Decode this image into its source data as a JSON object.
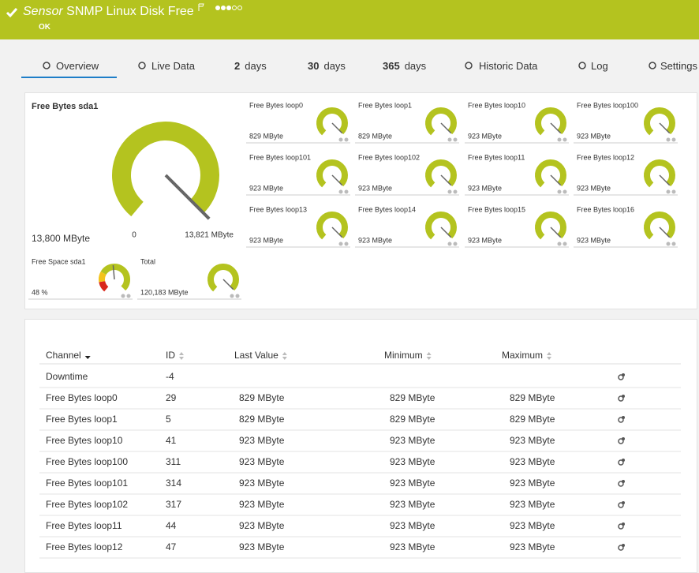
{
  "header": {
    "prefix": "Sensor",
    "title": "SNMP Linux Disk Free",
    "status": "OK"
  },
  "tabs": [
    {
      "label": "Overview"
    },
    {
      "label": "Live Data"
    },
    {
      "number": "2",
      "label": "days"
    },
    {
      "number": "30",
      "label": "days"
    },
    {
      "number": "365",
      "label": "days"
    },
    {
      "label": "Historic Data"
    },
    {
      "label": "Log"
    },
    {
      "label": "Settings"
    }
  ],
  "main_gauge": {
    "title": "Free Bytes sda1",
    "value": "13,800 MByte",
    "min": "0",
    "max": "13,821 MByte"
  },
  "gauges": [
    {
      "title": "Free Bytes loop0",
      "value": "829 MByte"
    },
    {
      "title": "Free Bytes loop1",
      "value": "829 MByte"
    },
    {
      "title": "Free Bytes loop10",
      "value": "923 MByte"
    },
    {
      "title": "Free Bytes loop100",
      "value": "923 MByte"
    },
    {
      "title": "Free Bytes loop101",
      "value": "923 MByte"
    },
    {
      "title": "Free Bytes loop102",
      "value": "923 MByte"
    },
    {
      "title": "Free Bytes loop11",
      "value": "923 MByte"
    },
    {
      "title": "Free Bytes loop12",
      "value": "923 MByte"
    },
    {
      "title": "Free Bytes loop13",
      "value": "923 MByte"
    },
    {
      "title": "Free Bytes loop14",
      "value": "923 MByte"
    },
    {
      "title": "Free Bytes loop15",
      "value": "923 MByte"
    },
    {
      "title": "Free Bytes loop16",
      "value": "923 MByte"
    }
  ],
  "extra_gauges": [
    {
      "title": "Free Space sda1",
      "value": "48 %"
    },
    {
      "title": "Total",
      "value": "120,183 MByte"
    }
  ],
  "table": {
    "columns": [
      "Channel",
      "ID",
      "Last Value",
      "Minimum",
      "Maximum"
    ],
    "rows": [
      [
        "Downtime",
        "-4"
      ],
      [
        "Free Bytes loop0",
        "29",
        "829 MByte",
        "829 MByte",
        "829 MByte"
      ],
      [
        "Free Bytes loop1",
        "5",
        "829 MByte",
        "829 MByte",
        "829 MByte"
      ],
      [
        "Free Bytes loop10",
        "41",
        "923 MByte",
        "923 MByte",
        "923 MByte"
      ],
      [
        "Free Bytes loop100",
        "311",
        "923 MByte",
        "923 MByte",
        "923 MByte"
      ],
      [
        "Free Bytes loop101",
        "314",
        "923 MByte",
        "923 MByte",
        "923 MByte"
      ],
      [
        "Free Bytes loop102",
        "317",
        "923 MByte",
        "923 MByte",
        "923 MByte"
      ],
      [
        "Free Bytes loop11",
        "44",
        "923 MByte",
        "923 MByte",
        "923 MByte"
      ],
      [
        "Free Bytes loop12",
        "47",
        "923 MByte",
        "923 MByte",
        "923 MByte"
      ]
    ]
  }
}
